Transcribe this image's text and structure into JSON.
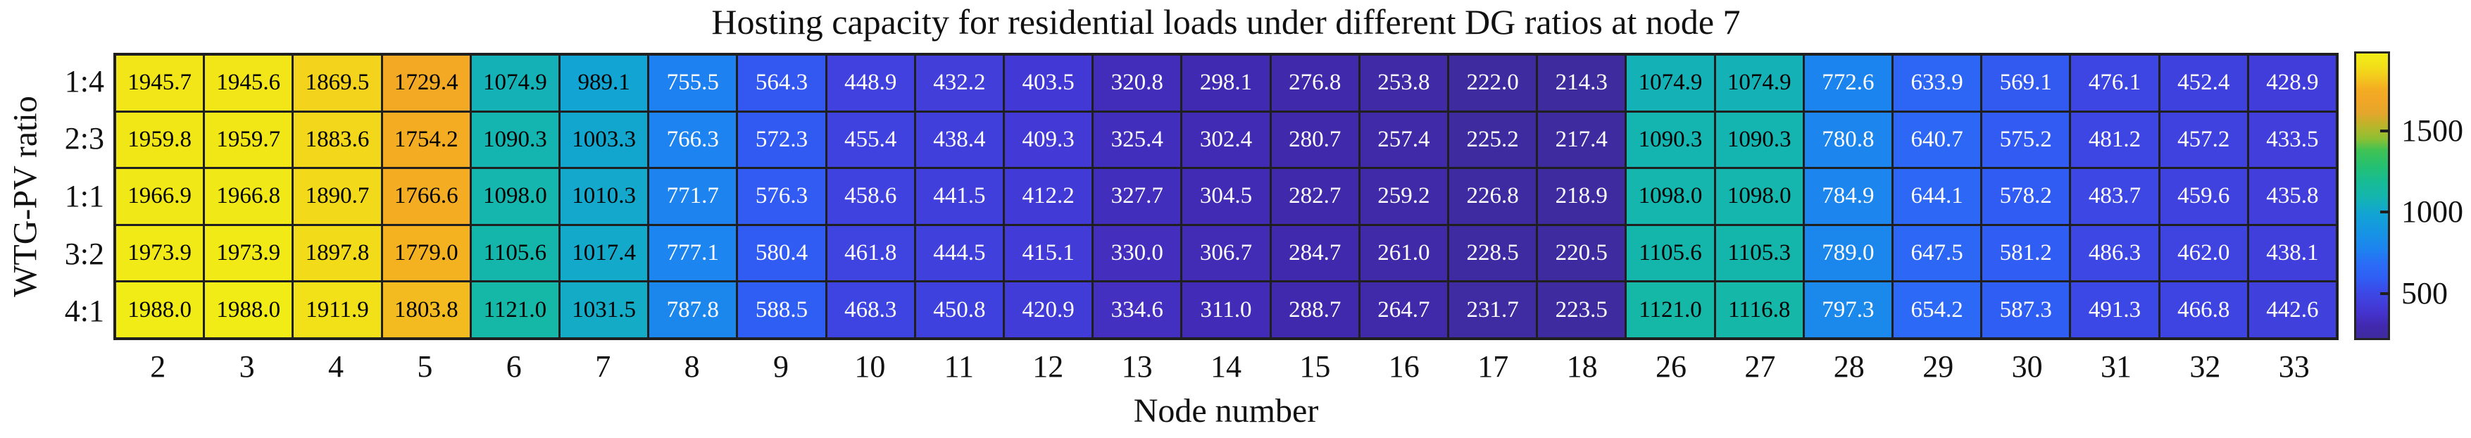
{
  "chart_data": {
    "type": "heatmap",
    "title": "Hosting capacity for residential loads under different DG ratios at node 7",
    "xlabel": "Node number",
    "ylabel": "WTG-PV ratio",
    "x_categories": [
      "2",
      "3",
      "4",
      "5",
      "6",
      "7",
      "8",
      "9",
      "10",
      "11",
      "12",
      "13",
      "14",
      "15",
      "16",
      "17",
      "18",
      "26",
      "27",
      "28",
      "29",
      "30",
      "31",
      "32",
      "33"
    ],
    "y_categories": [
      "1:4",
      "2:3",
      "1:1",
      "3:2",
      "4:1"
    ],
    "values": [
      [
        1945.7,
        1945.6,
        1869.5,
        1729.4,
        1074.9,
        989.1,
        755.5,
        564.3,
        448.9,
        432.2,
        403.5,
        320.8,
        298.1,
        276.8,
        253.8,
        222.0,
        214.3,
        1074.9,
        1074.9,
        772.6,
        633.9,
        569.1,
        476.1,
        452.4,
        428.9
      ],
      [
        1959.8,
        1959.7,
        1883.6,
        1754.2,
        1090.3,
        1003.3,
        766.3,
        572.3,
        455.4,
        438.4,
        409.3,
        325.4,
        302.4,
        280.7,
        257.4,
        225.2,
        217.4,
        1090.3,
        1090.3,
        780.8,
        640.7,
        575.2,
        481.2,
        457.2,
        433.5
      ],
      [
        1966.9,
        1966.8,
        1890.7,
        1766.6,
        1098.0,
        1010.3,
        771.7,
        576.3,
        458.6,
        441.5,
        412.2,
        327.7,
        304.5,
        282.7,
        259.2,
        226.8,
        218.9,
        1098.0,
        1098.0,
        784.9,
        644.1,
        578.2,
        483.7,
        459.6,
        435.8
      ],
      [
        1973.9,
        1973.9,
        1897.8,
        1779.0,
        1105.6,
        1017.4,
        777.1,
        580.4,
        461.8,
        444.5,
        415.1,
        330.0,
        306.7,
        284.7,
        261.0,
        228.5,
        220.5,
        1105.6,
        1105.3,
        789.0,
        647.5,
        581.2,
        486.3,
        462.0,
        438.1
      ],
      [
        1988.0,
        1988.0,
        1911.9,
        1803.8,
        1121.0,
        1031.5,
        787.8,
        588.5,
        468.3,
        450.8,
        420.9,
        334.6,
        311.0,
        288.7,
        264.7,
        231.7,
        223.5,
        1121.0,
        1116.8,
        797.3,
        654.2,
        587.3,
        491.3,
        466.8,
        442.6
      ]
    ],
    "value_decimals": 1,
    "color_scale": {
      "vmin": 214.3,
      "vmax": 1988.0,
      "colorbar_ticks": [
        1500,
        1000,
        500
      ],
      "stops": [
        [
          0.0,
          "#3e2b9e"
        ],
        [
          0.04,
          "#4129ad"
        ],
        [
          0.09,
          "#4433cf"
        ],
        [
          0.13,
          "#4040dd"
        ],
        [
          0.17,
          "#3a4ce9"
        ],
        [
          0.21,
          "#2f5ef4"
        ],
        [
          0.26,
          "#2b6cf6"
        ],
        [
          0.31,
          "#1d83f0"
        ],
        [
          0.37,
          "#1694e4"
        ],
        [
          0.43,
          "#12a2d5"
        ],
        [
          0.46,
          "#13abc6"
        ],
        [
          0.5,
          "#14b6ac"
        ],
        [
          0.545,
          "#17bb97"
        ],
        [
          0.6,
          "#23c074"
        ],
        [
          0.66,
          "#3fc253"
        ],
        [
          0.7,
          "#8dc033"
        ],
        [
          0.745,
          "#b9b52a"
        ],
        [
          0.79,
          "#e3a62b"
        ],
        [
          0.84,
          "#f2a626"
        ],
        [
          0.875,
          "#f4ad22"
        ],
        [
          0.92,
          "#f3cb1d"
        ],
        [
          0.955,
          "#f2df19"
        ],
        [
          1.0,
          "#f1ec16"
        ]
      ]
    },
    "cell_text": {
      "on_dark_cells": "#ffffff",
      "on_light_cells": "#000000",
      "white_text_below_value": 900
    },
    "gridline_color": "#1f1f1f"
  }
}
